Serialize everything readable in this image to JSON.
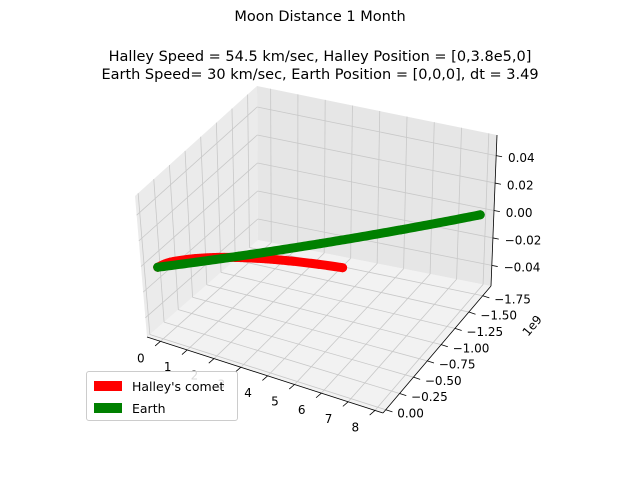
{
  "chart_data": {
    "type": "line3d",
    "title_lines": [
      "Moon Distance 1 Month",
      "",
      "Halley Speed = 54.5 km/sec, Halley Position = [0,3.8e5,0]",
      "Earth Speed= 30 km/sec, Earth Position = [0,0,0], dt = 3.49"
    ],
    "axes": {
      "x": {
        "ticks": [
          0,
          1,
          2,
          3,
          4,
          5,
          6,
          7,
          8
        ],
        "tick_labels": [
          "0",
          "1",
          "2",
          "3",
          "4",
          "5",
          "6",
          "7",
          "8"
        ],
        "range": [
          -0.5,
          8.3
        ]
      },
      "y": {
        "ticks": [
          0.0,
          -0.25,
          -0.5,
          -0.75,
          -1.0,
          -1.25,
          -1.5,
          -1.75
        ],
        "tick_labels": [
          "0.00",
          "−0.25",
          "−0.50",
          "−0.75",
          "−1.00",
          "−1.25",
          "−1.50",
          "−1.75"
        ],
        "range": [
          0.05,
          -1.9
        ],
        "offset_label": "1e9"
      },
      "z": {
        "ticks": [
          0.04,
          0.02,
          0.0,
          -0.02,
          -0.04
        ],
        "tick_labels": [
          "0.04",
          "0.02",
          "0.00",
          "−0.02",
          "−0.04"
        ],
        "range": [
          -0.055,
          0.055
        ]
      }
    },
    "series": [
      {
        "name": "Halley's comet",
        "color": "#ff0000",
        "points": [
          [
            0.0,
            0.0,
            0.0
          ],
          [
            0.2,
            -0.12,
            0.0
          ],
          [
            0.8,
            -0.26,
            0.0
          ],
          [
            1.6,
            -0.38,
            0.0
          ],
          [
            2.6,
            -0.48,
            0.0
          ],
          [
            3.6,
            -0.55,
            0.0
          ],
          [
            4.6,
            -0.6,
            0.0
          ],
          [
            5.4,
            -0.63,
            0.0
          ]
        ]
      },
      {
        "name": "Earth",
        "color": "#008000",
        "points": [
          [
            0.0,
            0.0,
            0.0
          ],
          [
            2.0,
            -0.45,
            0.0
          ],
          [
            4.0,
            -0.9,
            0.0
          ],
          [
            6.0,
            -1.35,
            0.0
          ],
          [
            8.0,
            -1.8,
            0.0
          ]
        ]
      }
    ],
    "grid": true,
    "legend_position": "lower-left"
  }
}
